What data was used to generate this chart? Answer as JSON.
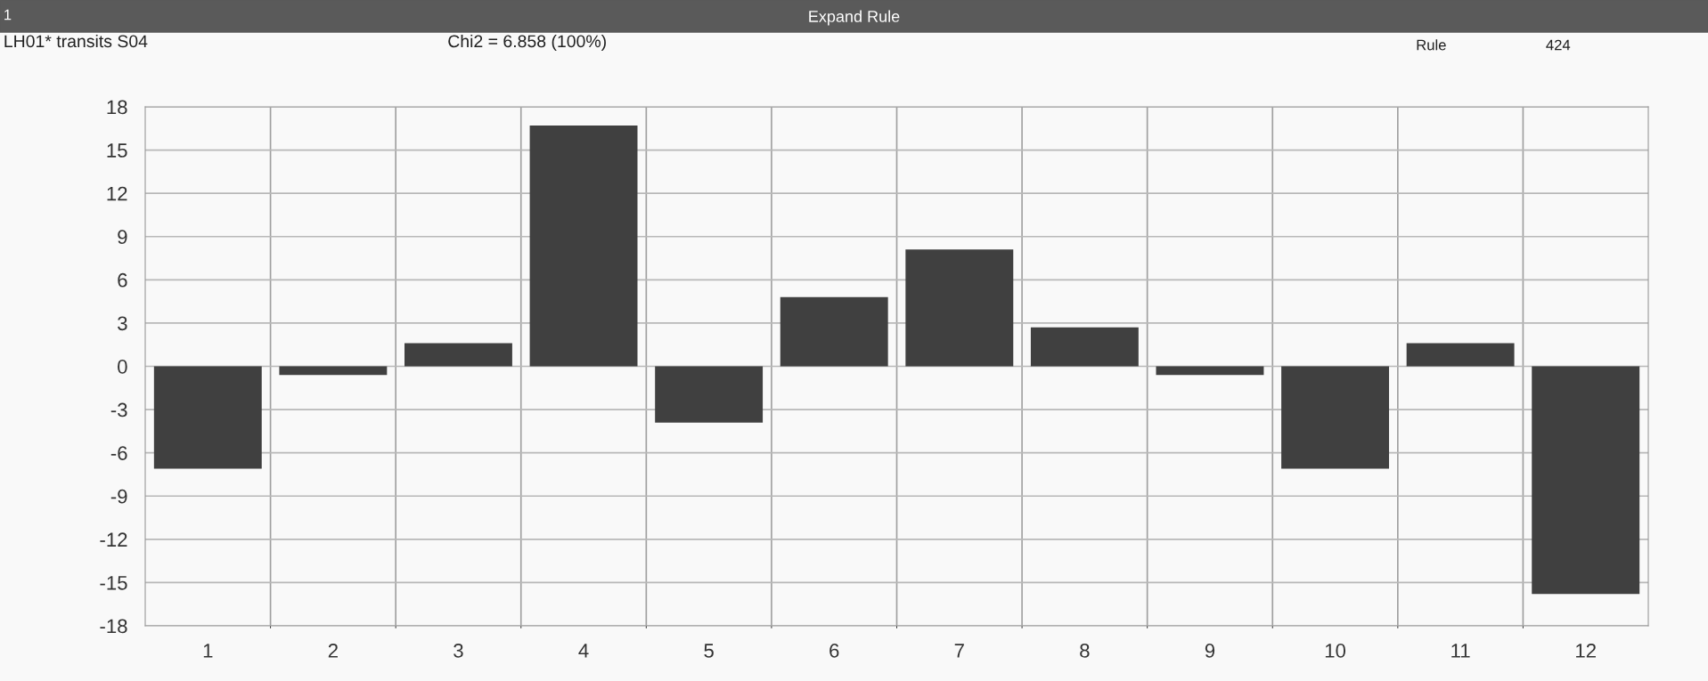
{
  "chart_data": {
    "type": "bar",
    "title": "Expand Rule",
    "annotations": [
      "1",
      "LH01* transits S04",
      "Chi2 = 6.858 (100%)",
      "Rule",
      "424"
    ],
    "categories": [
      "1",
      "2",
      "3",
      "4",
      "5",
      "6",
      "7",
      "8",
      "9",
      "10",
      "11",
      "12"
    ],
    "values": [
      -7.1,
      -0.6,
      1.6,
      16.7,
      -3.9,
      4.8,
      8.1,
      2.7,
      -0.6,
      -7.1,
      1.6,
      -15.8
    ],
    "color": "#404040",
    "ylim": [
      -18,
      18
    ],
    "yticks": [
      -18,
      -15,
      -12,
      -9,
      -6,
      -3,
      0,
      3,
      6,
      9,
      12,
      15,
      18
    ],
    "grid": true
  }
}
